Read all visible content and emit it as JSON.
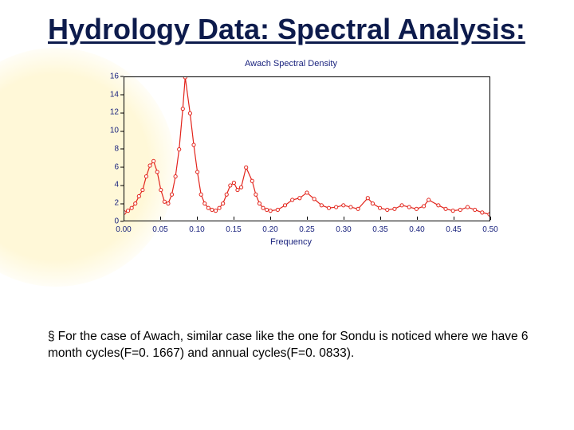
{
  "title": "Hydrology Data: Spectral Analysis:",
  "bullet_glyph": "§",
  "body_text": "For the case of Awach, similar case like the one for Sondu is noticed where we have 6 month cycles(F=0. 1667) and annual cycles(F=0. 0833).",
  "chart": {
    "title": "Awach Spectral Density",
    "xlabel": "Frequency",
    "type": "line+marker",
    "line_color": "#e2231a",
    "marker_color": "#e2231a",
    "marker_fill": "#ffffff",
    "marker_radius": 2.1,
    "line_width": 1.2,
    "background_color": "#ffffff",
    "axis_color": "#000000",
    "tick_label_color": "#1a237e",
    "tick_fontsize": 10,
    "xlim": [
      0.0,
      0.5
    ],
    "ylim": [
      0,
      16
    ],
    "xticks": [
      0.0,
      0.05,
      0.1,
      0.15,
      0.2,
      0.25,
      0.3,
      0.35,
      0.4,
      0.45,
      0.5
    ],
    "xtick_labels": [
      "0.00",
      "0.05",
      "0.10",
      "0.15",
      "0.20",
      "0.25",
      "0.30",
      "0.35",
      "0.40",
      "0.45",
      "0.50"
    ],
    "yticks": [
      0,
      2,
      4,
      6,
      8,
      10,
      12,
      14,
      16
    ],
    "ytick_labels": [
      "0",
      "2",
      "4",
      "6",
      "8",
      "10",
      "12",
      "14",
      "16"
    ],
    "x": [
      0.0,
      0.005,
      0.01,
      0.015,
      0.02,
      0.025,
      0.03,
      0.035,
      0.04,
      0.045,
      0.05,
      0.055,
      0.06,
      0.065,
      0.07,
      0.075,
      0.08,
      0.0833,
      0.09,
      0.095,
      0.1,
      0.105,
      0.11,
      0.115,
      0.12,
      0.125,
      0.13,
      0.135,
      0.14,
      0.145,
      0.15,
      0.155,
      0.16,
      0.1667,
      0.175,
      0.18,
      0.185,
      0.19,
      0.195,
      0.2,
      0.21,
      0.22,
      0.23,
      0.24,
      0.25,
      0.26,
      0.27,
      0.28,
      0.29,
      0.3,
      0.31,
      0.32,
      0.3333,
      0.34,
      0.35,
      0.36,
      0.37,
      0.38,
      0.39,
      0.4,
      0.41,
      0.4167,
      0.43,
      0.44,
      0.45,
      0.46,
      0.47,
      0.48,
      0.49,
      0.5
    ],
    "y": [
      1.0,
      1.2,
      1.5,
      2.0,
      2.8,
      3.5,
      5.0,
      6.2,
      6.7,
      5.5,
      3.5,
      2.2,
      2.0,
      3.0,
      5.0,
      8.0,
      12.5,
      16.0,
      12.0,
      8.5,
      5.5,
      3.0,
      2.0,
      1.5,
      1.3,
      1.2,
      1.5,
      2.0,
      3.0,
      4.0,
      4.3,
      3.5,
      3.8,
      6.0,
      4.5,
      3.0,
      2.0,
      1.5,
      1.3,
      1.2,
      1.3,
      1.8,
      2.4,
      2.6,
      3.2,
      2.5,
      1.8,
      1.5,
      1.6,
      1.8,
      1.6,
      1.4,
      2.6,
      2.0,
      1.5,
      1.3,
      1.4,
      1.8,
      1.6,
      1.4,
      1.7,
      2.4,
      1.8,
      1.4,
      1.2,
      1.3,
      1.6,
      1.3,
      1.0,
      0.8
    ]
  },
  "colors": {
    "title_color": "#0d1b4c",
    "bg_deco": "#fff8d8"
  }
}
